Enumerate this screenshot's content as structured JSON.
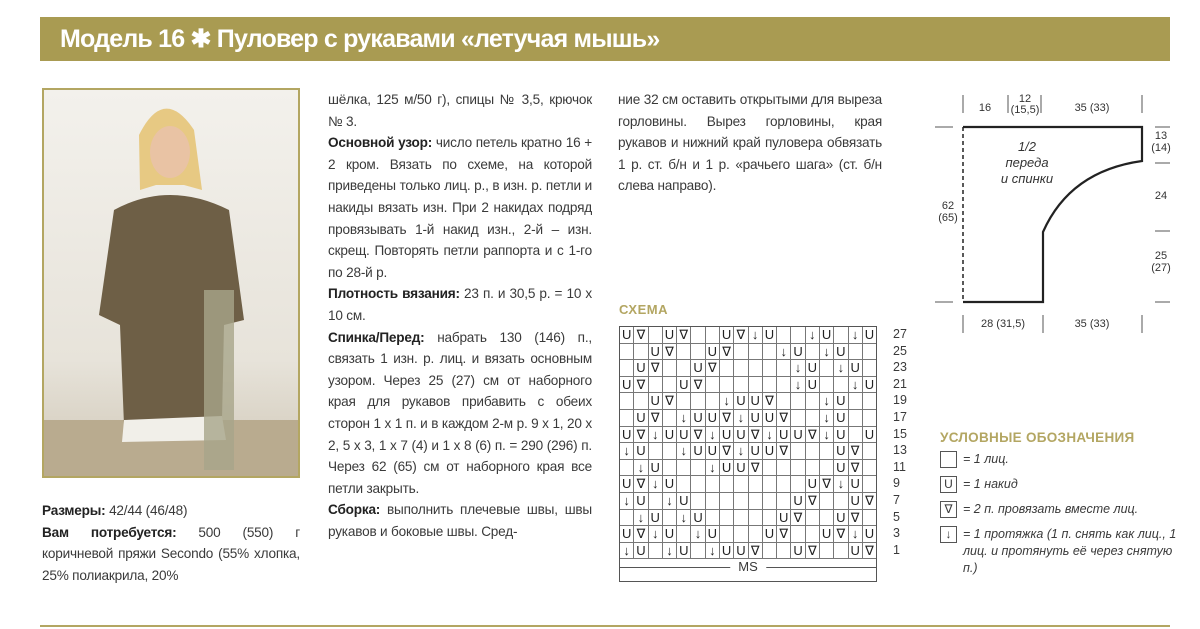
{
  "header": {
    "title": "Модель 16 ✱ Пуловер с рукавами «летучая мышь»"
  },
  "colors": {
    "accent": "#a99b52"
  },
  "column1": {
    "sizes_label": "Размеры:",
    "sizes_text": " 42/44 (46/48)",
    "materials_label": "Вам потребуется:",
    "materials_text": " 500 (550) г коричневой пряжи Secondo (55% хлопка, 25% полиакрила, 20%"
  },
  "column2": {
    "p0": "шёлка, 125 м/50 г), спицы № 3,5, крючок № 3.",
    "pattern_label": "Основной узор:",
    "pattern_text": " число петель кратно 16 + 2 кром. Вязать по схеме, на которой приведены только лиц. р., в изн. р. петли и накиды вязать изн. При 2 накидах подряд провязывать 1-й накид изн., 2-й – изн. скрещ. Повторять петли раппорта и с 1-го по 28-й р.",
    "gauge_label": "Плотность вязания:",
    "gauge_text": " 23 п. и 30,5 р. = 10 х 10 см.",
    "back_label": "Спинка/Перед:",
    "back_text": " набрать 130 (146) п., связать 1 изн. р. лиц. и вязать основным узором. Через 25 (27) см от наборного края для рукавов прибавить с обеих сторон 1 х 1 п. и в каждом 2-м р. 9 х 1, 20 х 2, 5 х 3, 1 х 7 (4) и 1 х 8 (6) п. = 290 (296) п. Через 62 (65) см от наборного края все петли закрыть.",
    "assembly_label": "Сборка:",
    "assembly_text": " выполнить плечевые швы, швы рукавов и боковые швы. Сред-"
  },
  "column3": {
    "text": "ние 32 см оставить открытыми для выреза горловины. Вырез горловины, края рукавов и нижний край пуловера обвязать 1 р. ст. б/н и 1 р. «рачьего шага» (ст. б/н слева направо)."
  },
  "schematic": {
    "label_line1": "1/2",
    "label_line2": "переда",
    "label_line3": "и спинки",
    "top_1": "16",
    "top_2a": "12",
    "top_2b": "(15,5)",
    "top_3": "35 (33)",
    "right_1a": "13",
    "right_1b": "(14)",
    "right_2": "24",
    "right_3a": "25",
    "right_3b": "(27)",
    "left_a": "62",
    "left_b": "(65)",
    "bottom_1": "28 (31,5)",
    "bottom_2": "35 (33)"
  },
  "chart": {
    "title": "СХЕМА",
    "footer": "MS",
    "row_labels": [
      "27",
      "25",
      "23",
      "21",
      "19",
      "17",
      "15",
      "13",
      "11",
      "9",
      "7",
      "5",
      "3",
      "1"
    ],
    "rows": [
      "UV.UV..UVDU..DU.DU",
      "..UV..UV...DU.DU..",
      ".UV..UV.....DU.DU.",
      "UV..UV......DU..DU",
      "..UV...DUUV...DU..",
      ".UV.DUUVDUUV..DU..",
      "UVDUUVDUUVDUUVDU.U",
      "DU..DUUVDUUV...UV.",
      ".DU...DUUV.....UV.",
      "UVDU.........UVDU.",
      "DU.DU.......UV..UV",
      ".DU.DU.....UV..UV.",
      "UVDU.DU...UV..UVDU",
      "DU.DU.DUUV..UV..UV"
    ]
  },
  "legend": {
    "title": "УСЛОВНЫЕ ОБОЗНАЧЕНИЯ",
    "items": [
      {
        "icon": "empty-square",
        "text": "= 1 лиц."
      },
      {
        "icon": "yarn-over-u",
        "text": "= 1 накид"
      },
      {
        "icon": "knit-two-together-v",
        "text": "= 2 п. провязать вместе лиц."
      },
      {
        "icon": "down-arrow",
        "text": "= 1 протяжка (1 п. снять как лиц., 1 лиц. и протянуть её через снятую п.)"
      }
    ]
  }
}
